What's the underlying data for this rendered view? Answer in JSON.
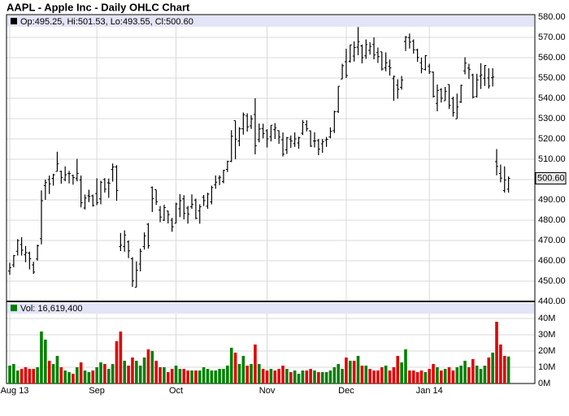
{
  "chart_data": {
    "type": "ohlc",
    "title": "AAPL - Apple Inc - Daily OHLC Chart",
    "legend_text": "Op:495.25, Hi:501.53, Lo:493.55, Cl:500.60",
    "volume_legend_text": "Vol: 16,619,400",
    "last_price_label": "500.60",
    "bar_color": "#000000",
    "up_color": "#008000",
    "down_color": "#e00000",
    "band_color": "#e4e4f8",
    "grid": true,
    "categories": [
      "Aug 13",
      null,
      null,
      null,
      null,
      null,
      null,
      null,
      null,
      null,
      null,
      null,
      null,
      null,
      null,
      null,
      null,
      null,
      null,
      null,
      null,
      null,
      "Sep",
      null,
      null,
      null,
      null,
      null,
      null,
      null,
      null,
      null,
      null,
      null,
      null,
      null,
      null,
      null,
      null,
      null,
      null,
      null,
      "Oct",
      null,
      null,
      null,
      null,
      null,
      null,
      null,
      null,
      null,
      null,
      null,
      null,
      null,
      null,
      null,
      null,
      null,
      null,
      null,
      null,
      null,
      null,
      "Nov",
      null,
      null,
      null,
      null,
      null,
      null,
      null,
      null,
      null,
      null,
      null,
      null,
      null,
      null,
      null,
      null,
      null,
      null,
      null,
      "Dec",
      null,
      null,
      null,
      null,
      null,
      null,
      null,
      null,
      null,
      null,
      null,
      null,
      null,
      null,
      null,
      null,
      null,
      null,
      null,
      null,
      "Jan 14",
      null,
      null,
      null,
      null,
      null,
      null,
      null,
      null,
      null,
      null,
      null,
      null,
      null,
      null,
      null,
      null,
      null,
      null,
      null,
      null
    ],
    "open": [
      455.0,
      458.0,
      464.7,
      468.0,
      463.0,
      463.8,
      458.0,
      460.9,
      470.9,
      497.0,
      500.0,
      500.6,
      504.0,
      504.0,
      500.0,
      503.0,
      502.0,
      500.5,
      499.8,
      486.0,
      492.0,
      492.0,
      493.1,
      490.5,
      500.0,
      498.4,
      505.0,
      506.2,
      467.0,
      467.0,
      469.3,
      461.0,
      447.0,
      458.4,
      467.0,
      478.0,
      496.1,
      495.0,
      485.0,
      480.0,
      484.5,
      480.0,
      478.5,
      485.6,
      490.5,
      486.0,
      486.6,
      489.9,
      484.6,
      491.3,
      486.9,
      489.0,
      497.5,
      500.8,
      499.0,
      505.0,
      509.0,
      529.0,
      519.0,
      525.0,
      531.3,
      526.4,
      532.0,
      519.6,
      525.0,
      524.0,
      521.1,
      524.6,
      524.1,
      519.6,
      514.6,
      519.9,
      517.7,
      518.0,
      522.8,
      527.0,
      524.0,
      519.0,
      519.2,
      517.6,
      519.5,
      521.0,
      524.1,
      533.5,
      549.5,
      558.0,
      558.3,
      560.8,
      565.2,
      565.8,
      560.9,
      563.6,
      566.5,
      562.5,
      562.9,
      555.0,
      555.8,
      549.7,
      546.5,
      545.4,
      568.0,
      569.9,
      568.1,
      563.8,
      557.5,
      554.2,
      555.7,
      552.9,
      537.5,
      544.3,
      538.8,
      546.8,
      539.8,
      529.9,
      538.2,
      553.5,
      554.9,
      551.5,
      540.9,
      550.9,
      549.9,
      550.0,
      550.1,
      508.8,
      503.0,
      494.6,
      495.25
    ],
    "high": [
      459.0,
      462.9,
      470.7,
      471.6,
      467.3,
      464.5,
      459.5,
      468.0,
      494.7,
      500.0,
      502.0,
      502.9,
      513.7,
      504.4,
      506.5,
      504.3,
      502.4,
      510.2,
      502.0,
      492.6,
      495.0,
      492.6,
      500.6,
      499.4,
      500.7,
      500.5,
      507.9,
      507.1,
      473.7,
      475.0,
      470.0,
      461.8,
      459.7,
      466.0,
      474.0,
      478.6,
      496.6,
      495.0,
      487.0,
      487.6,
      484.7,
      481.1,
      488.6,
      492.8,
      492.3,
      487.0,
      492.7,
      490.6,
      487.8,
      492.4,
      493.5,
      497.0,
      502.0,
      502.1,
      504.8,
      509.3,
      524.3,
      529.0,
      525.8,
      533.0,
      532.6,
      531.7,
      540.0,
      527.6,
      527.5,
      524.8,
      526.8,
      527.8,
      524.2,
      523.2,
      521.0,
      521.7,
      523.2,
      521.1,
      529.3,
      529.2,
      524.2,
      523.3,
      520.0,
      520.0,
      521.0,
      525.7,
      533.9,
      546.0,
      557.0,
      564.4,
      566.4,
      568.0,
      575.1,
      566.5,
      569.0,
      567.6,
      570.0,
      565.0,
      562.9,
      562.6,
      559.1,
      551.2,
      549.4,
      551.0,
      570.7,
      571.9,
      569.0,
      564.4,
      560.1,
      561.3,
      557.0,
      553.2,
      546.8,
      545.0,
      545.6,
      546.9,
      540.8,
      542.3,
      546.7,
      560.2,
      557.0,
      552.1,
      552.1,
      557.3,
      556.4,
      554.8,
      554.8,
      515.0,
      507.4,
      506.5,
      501.53
    ],
    "low": [
      453.1,
      456.8,
      462.6,
      462.6,
      459.3,
      455.8,
      453.5,
      460.1,
      468.1,
      490.0,
      492.9,
      497.0,
      504.0,
      498.0,
      499.2,
      498.1,
      497.5,
      499.1,
      486.3,
      485.3,
      488.9,
      486.7,
      487.4,
      487.8,
      493.6,
      491.0,
      499.0,
      489.5,
      464.8,
      464.5,
      461.3,
      447.2,
      447.0,
      454.8,
      465.5,
      466.0,
      484.0,
      487.5,
      479.0,
      479.6,
      478.4,
      474.3,
      478.5,
      481.5,
      480.4,
      478.3,
      485.6,
      480.5,
      478.3,
      487.0,
      485.6,
      487.8,
      495.5,
      497.3,
      498.2,
      503.7,
      508.6,
      510.0,
      516.4,
      522.1,
      523.6,
      524.9,
      512.4,
      518.3,
      520.3,
      515.8,
      518.8,
      520.0,
      517.6,
      511.4,
      512.6,
      515.6,
      516.1,
      515.2,
      521.9,
      523.7,
      516.1,
      515.8,
      512.0,
      513.2,
      516.1,
      520.3,
      522.9,
      532.8,
      549.4,
      550.0,
      557.5,
      558.1,
      561.2,
      557.2,
      559.4,
      561.5,
      559.2,
      557.4,
      553.7,
      553.3,
      551.2,
      538.8,
      539.8,
      544.3,
      563.3,
      564.5,
      562.0,
      558.0,
      552.3,
      553.7,
      552.0,
      540.4,
      533.6,
      537.9,
      538.8,
      534.8,
      531.0,
      529.9,
      537.7,
      551.8,
      549.5,
      539.9,
      540.4,
      544.6,
      546.1,
      544.8,
      545.8,
      502.1,
      498.6,
      493.6,
      493.55
    ],
    "close": [
      456.66,
      462.54,
      470.0,
      465.25,
      464.04,
      461.01,
      454.45,
      467.36,
      489.57,
      498.5,
      497.91,
      502.33,
      507.74,
      501.07,
      502.36,
      502.96,
      501.02,
      502.97,
      488.59,
      490.9,
      491.7,
      487.22,
      488.58,
      498.69,
      495.27,
      498.22,
      506.17,
      494.64,
      467.71,
      472.69,
      464.9,
      450.12,
      455.32,
      464.68,
      472.3,
      467.41,
      490.64,
      489.1,
      481.53,
      486.22,
      482.75,
      476.75,
      487.96,
      489.56,
      483.41,
      483.03,
      487.75,
      480.94,
      486.59,
      489.64,
      492.81,
      496.04,
      498.68,
      501.11,
      504.5,
      508.89,
      521.36,
      519.87,
      524.96,
      531.91,
      525.96,
      529.88,
      516.68,
      524.9,
      522.7,
      520.03,
      526.75,
      525.45,
      520.92,
      512.49,
      520.56,
      519.05,
      520.01,
      520.63,
      528.16,
      524.99,
      516.49,
      519.03,
      515.0,
      518.64,
      519.8,
      523.74,
      533.4,
      545.96,
      556.07,
      551.23,
      566.32,
      565.0,
      567.9,
      560.02,
      566.43,
      565.55,
      561.36,
      560.54,
      554.43,
      557.5,
      554.99,
      550.77,
      544.46,
      549.02,
      570.09,
      567.67,
      563.9,
      560.09,
      554.52,
      561.02,
      553.13,
      540.98,
      543.93,
      540.04,
      543.46,
      536.52,
      532.94,
      535.73,
      546.39,
      557.36,
      554.25,
      540.67,
      549.07,
      551.51,
      556.18,
      546.07,
      550.5,
      506.5,
      500.75,
      499.78,
      500.6
    ],
    "volume": [
      11000000,
      12000000,
      8000000,
      9000000,
      10000000,
      9000000,
      9000000,
      10000000,
      32000000,
      27000000,
      14000000,
      12000000,
      17000000,
      10000000,
      8000000,
      7000000,
      6000000,
      10000000,
      13000000,
      8000000,
      7000000,
      8000000,
      10000000,
      13000000,
      12000000,
      9000000,
      12000000,
      26000000,
      32000000,
      14000000,
      11000000,
      16000000,
      14000000,
      11000000,
      16000000,
      21000000,
      20000000,
      14000000,
      10000000,
      10000000,
      7000000,
      9000000,
      11000000,
      9000000,
      9000000,
      8000000,
      8000000,
      8000000,
      8000000,
      10000000,
      9000000,
      8000000,
      8000000,
      9000000,
      9000000,
      11000000,
      22000000,
      19000000,
      12000000,
      17000000,
      11000000,
      12000000,
      24000000,
      12000000,
      9000000,
      8000000,
      9000000,
      8000000,
      9000000,
      11000000,
      9000000,
      7000000,
      8000000,
      6000000,
      8000000,
      8000000,
      9000000,
      8000000,
      7000000,
      7000000,
      7000000,
      8000000,
      10000000,
      12000000,
      9000000,
      16000000,
      14000000,
      14000000,
      17000000,
      11000000,
      11000000,
      9000000,
      8000000,
      8000000,
      10000000,
      11000000,
      8000000,
      10000000,
      17000000,
      13000000,
      21000000,
      8000000,
      8000000,
      7000000,
      8000000,
      7000000,
      9000000,
      12000000,
      10000000,
      8000000,
      9000000,
      10000000,
      8000000,
      10000000,
      11000000,
      14000000,
      10000000,
      15000000,
      11000000,
      9000000,
      11000000,
      16000000,
      19000000,
      38000000,
      24000000,
      17000000,
      16619400
    ],
    "ylim": [
      440,
      580
    ],
    "yticks": [
      {
        "value": 440,
        "label": "440.00"
      },
      {
        "value": 450,
        "label": "450.00"
      },
      {
        "value": 460,
        "label": "460.00"
      },
      {
        "value": 470,
        "label": "470.00"
      },
      {
        "value": 480,
        "label": "480.00"
      },
      {
        "value": 490,
        "label": "490.00"
      },
      {
        "value": 500,
        "label": "500.00"
      },
      {
        "value": 510,
        "label": "510.00"
      },
      {
        "value": 520,
        "label": "520.00"
      },
      {
        "value": 530,
        "label": "530.00"
      },
      {
        "value": 540,
        "label": "540.00"
      },
      {
        "value": 550,
        "label": "550.00"
      },
      {
        "value": 560,
        "label": "560.00"
      },
      {
        "value": 570,
        "label": "570.00"
      },
      {
        "value": 580,
        "label": "580.00"
      }
    ],
    "volume_ylim": [
      0,
      40000000
    ],
    "volume_ticks": [
      {
        "value": 0,
        "label": "0M"
      },
      {
        "value": 10000000,
        "label": "10M"
      },
      {
        "value": 20000000,
        "label": "20M"
      },
      {
        "value": 30000000,
        "label": "30M"
      },
      {
        "value": 40000000,
        "label": "40M"
      }
    ]
  }
}
